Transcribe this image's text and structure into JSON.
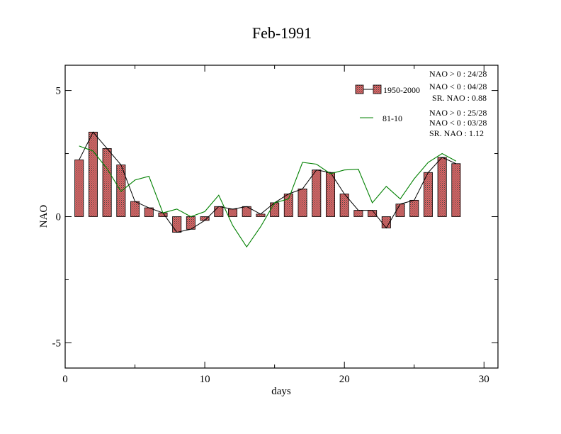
{
  "chart_data": {
    "type": "bar",
    "title": "Feb-1991",
    "xlabel": "days",
    "ylabel": "NAO",
    "xlim": [
      0,
      31
    ],
    "ylim": [
      -6,
      6
    ],
    "x_ticks": [
      0,
      10,
      20,
      30
    ],
    "x_tick_labels": [
      "0",
      "10",
      "20",
      "30"
    ],
    "y_ticks": [
      -5,
      0,
      5
    ],
    "y_tick_labels": [
      "-5",
      "0",
      "5"
    ],
    "grid": false,
    "legend_position": "top-right",
    "x": [
      1,
      2,
      3,
      4,
      5,
      6,
      7,
      8,
      9,
      10,
      11,
      12,
      13,
      14,
      15,
      16,
      17,
      18,
      19,
      20,
      21,
      22,
      23,
      24,
      25,
      26,
      27,
      28
    ],
    "series": [
      {
        "name": "1950-2000",
        "kind": "bar",
        "color": "#e06666",
        "values": [
          2.25,
          3.35,
          2.7,
          2.05,
          0.6,
          0.35,
          0.15,
          -0.62,
          -0.5,
          -0.15,
          0.4,
          0.3,
          0.4,
          0.1,
          0.55,
          0.9,
          1.1,
          1.85,
          1.75,
          0.9,
          0.25,
          0.25,
          -0.45,
          0.5,
          0.65,
          1.75,
          2.35,
          2.1
        ]
      },
      {
        "name": "81-10",
        "kind": "line",
        "color": "#008000",
        "values": [
          2.8,
          2.6,
          1.9,
          1.0,
          1.45,
          1.6,
          0.15,
          0.3,
          0.0,
          0.2,
          0.85,
          -0.35,
          -1.2,
          -0.4,
          0.55,
          0.7,
          2.15,
          2.08,
          1.7,
          1.85,
          1.88,
          0.55,
          1.2,
          0.7,
          1.5,
          2.15,
          2.5,
          2.2
        ]
      }
    ],
    "stats": [
      {
        "series": "1950-2000",
        "lines": [
          "NAO > 0 : 24/28",
          "NAO < 0 : 04/28",
          "SR. NAO :  0.88"
        ]
      },
      {
        "series": "81-10",
        "lines": [
          "NAO > 0 : 25/28",
          "NAO < 0 : 03/28",
          "SR. NAO :  1.12"
        ]
      }
    ],
    "colors": {
      "bar_fill": "#e06666",
      "bar_outline": "#000000",
      "bar_line": "#000000",
      "line": "#008000"
    }
  }
}
